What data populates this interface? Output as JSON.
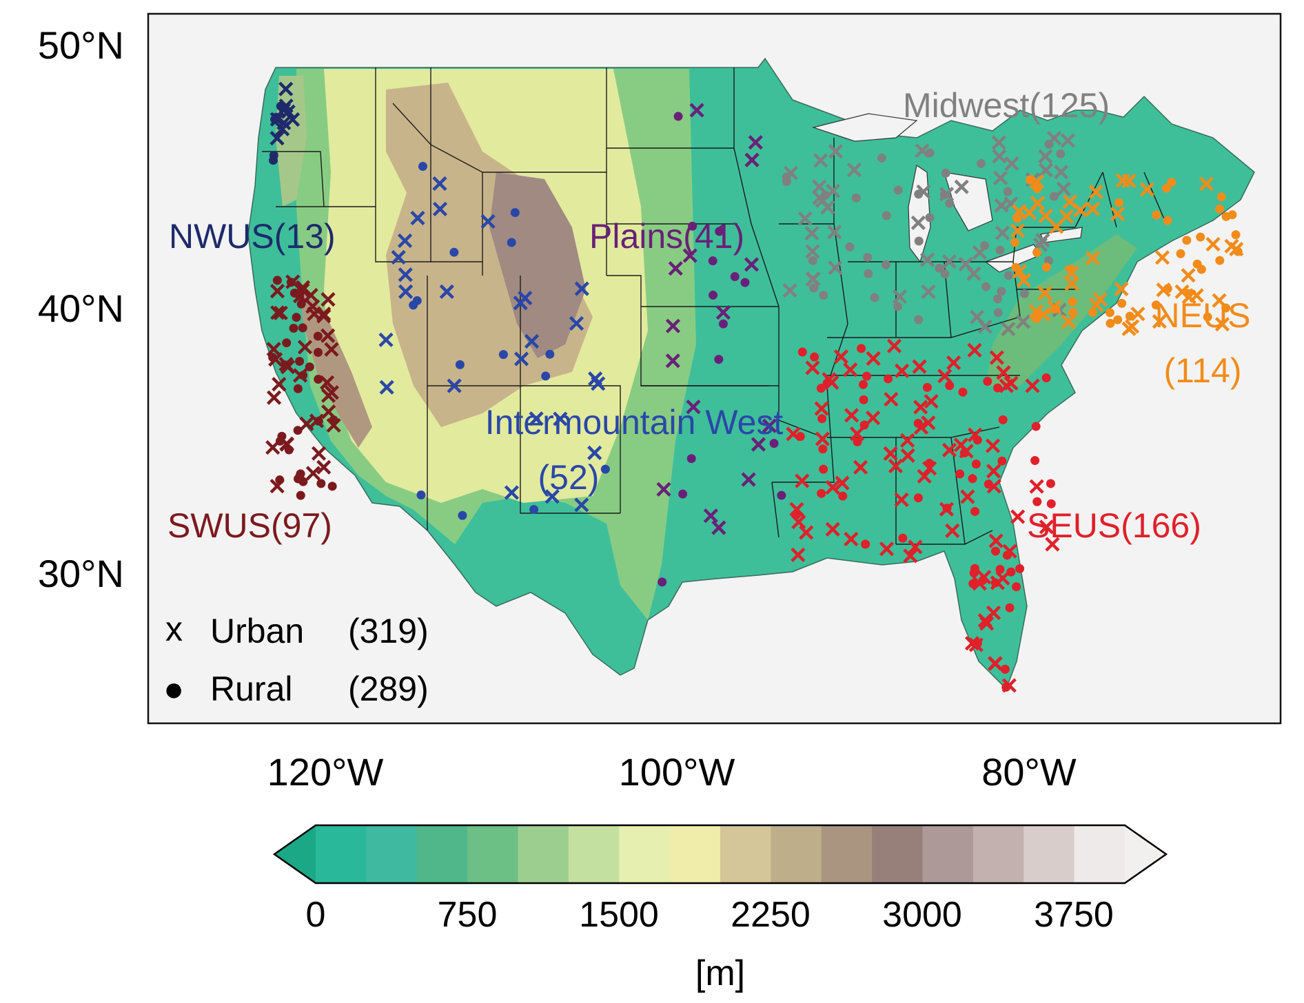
{
  "map": {
    "lat_labels": [
      "50°N",
      "40°N",
      "30°N"
    ],
    "lon_labels": [
      "120°W",
      "100°W",
      "80°W"
    ]
  },
  "regions": [
    {
      "id": "nwus",
      "label": "NWUS(13)",
      "color": "#1f2a6b"
    },
    {
      "id": "swus",
      "label": "SWUS(97)",
      "color": "#7b1a1e"
    },
    {
      "id": "intermountain",
      "label_line1": "Intermountain West",
      "label_line2": "(52)",
      "color": "#2a47a8"
    },
    {
      "id": "plains",
      "label": "Plains(41)",
      "color": "#6a2078"
    },
    {
      "id": "midwest",
      "label": "Midwest(125)",
      "color": "#808080"
    },
    {
      "id": "neus",
      "label_line1": "NEUS",
      "label_line2": "(114)",
      "color": "#f28b1a"
    },
    {
      "id": "seus",
      "label": "SEUS(166)",
      "color": "#e0202a"
    }
  ],
  "legend": {
    "urban": {
      "symbol": "x",
      "label": "Urban",
      "count": "(319)"
    },
    "rural": {
      "symbol": "●",
      "label": "Rural",
      "count": "(289)"
    }
  },
  "colorbar": {
    "ticks": [
      "0",
      "750",
      "1500",
      "2250",
      "3000",
      "3750"
    ],
    "unit": "[m]",
    "colors": [
      "#2ab89a",
      "#3fb9a0",
      "#4fb78a",
      "#6cbf85",
      "#9ccf8f",
      "#c4e0a0",
      "#e6efb0",
      "#f0ecaa",
      "#d5c69a",
      "#bfae8a",
      "#a99580",
      "#97807a",
      "#ad9a98",
      "#c2b1ae",
      "#d8cdcb",
      "#eeeae9"
    ]
  }
}
